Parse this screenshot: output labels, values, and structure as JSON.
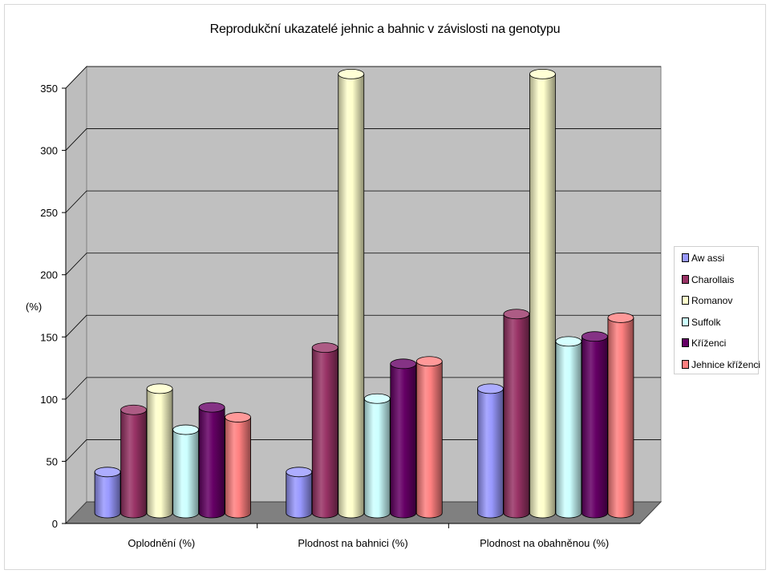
{
  "chart_data": {
    "type": "bar",
    "title": "Reprodukční ukazatelé jehnic a bahnic v závislosti na genotypu",
    "ylabel": "(%)",
    "xlabel": "",
    "ylim": [
      0,
      350
    ],
    "yticks": [
      0,
      50,
      100,
      150,
      200,
      250,
      300,
      350
    ],
    "categories": [
      "Oplodnění  (%)",
      "Plodnost na bahnici (%)",
      "Plodnost na obahněnou (%)"
    ],
    "series": [
      {
        "name": "Aw assi",
        "color": "#9999FF",
        "values": [
          33,
          33,
          100
        ]
      },
      {
        "name": "Charollais",
        "color": "#993366",
        "values": [
          83,
          133,
          160
        ]
      },
      {
        "name": "Romanov",
        "color": "#FFFFCC",
        "values": [
          100,
          353,
          353
        ]
      },
      {
        "name": "Suffolk",
        "color": "#CCFFFF",
        "values": [
          67,
          92,
          138
        ]
      },
      {
        "name": "Kříženci",
        "color": "#660066",
        "values": [
          85,
          120,
          142
        ]
      },
      {
        "name": "Jehnice kříženci",
        "color": "#FF8080",
        "values": [
          77,
          122,
          157
        ]
      }
    ],
    "grid": true,
    "legend_position": "right",
    "three_d": true
  }
}
